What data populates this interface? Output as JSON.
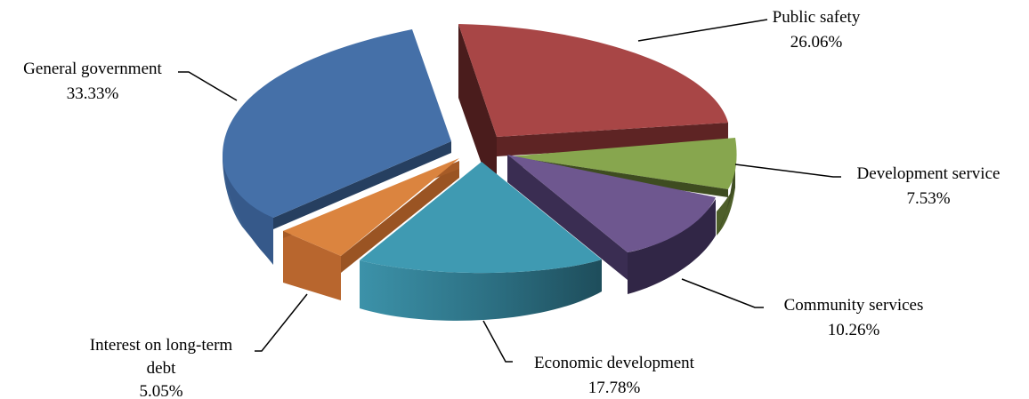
{
  "chart_data": {
    "type": "pie",
    "style": "3d-exploded",
    "title": "",
    "legend": "none",
    "slices": [
      {
        "name": "Public safety",
        "value": 26.06,
        "percent_label": "26.06%",
        "color": "#A84646"
      },
      {
        "name": "Development service",
        "value": 7.53,
        "percent_label": "7.53%",
        "color": "#87A64E"
      },
      {
        "name": "Community services",
        "value": 10.26,
        "percent_label": "10.26%",
        "color": "#6E578F"
      },
      {
        "name": "Economic development",
        "value": 17.78,
        "percent_label": "17.78%",
        "color": "#3F9AB2"
      },
      {
        "name": "Interest on long-term debt",
        "value": 5.05,
        "percent_label": "5.05%",
        "color": "#DB843F"
      },
      {
        "name": "General government",
        "value": 33.33,
        "percent_label": "33.33%",
        "color": "#4570A8"
      }
    ]
  }
}
